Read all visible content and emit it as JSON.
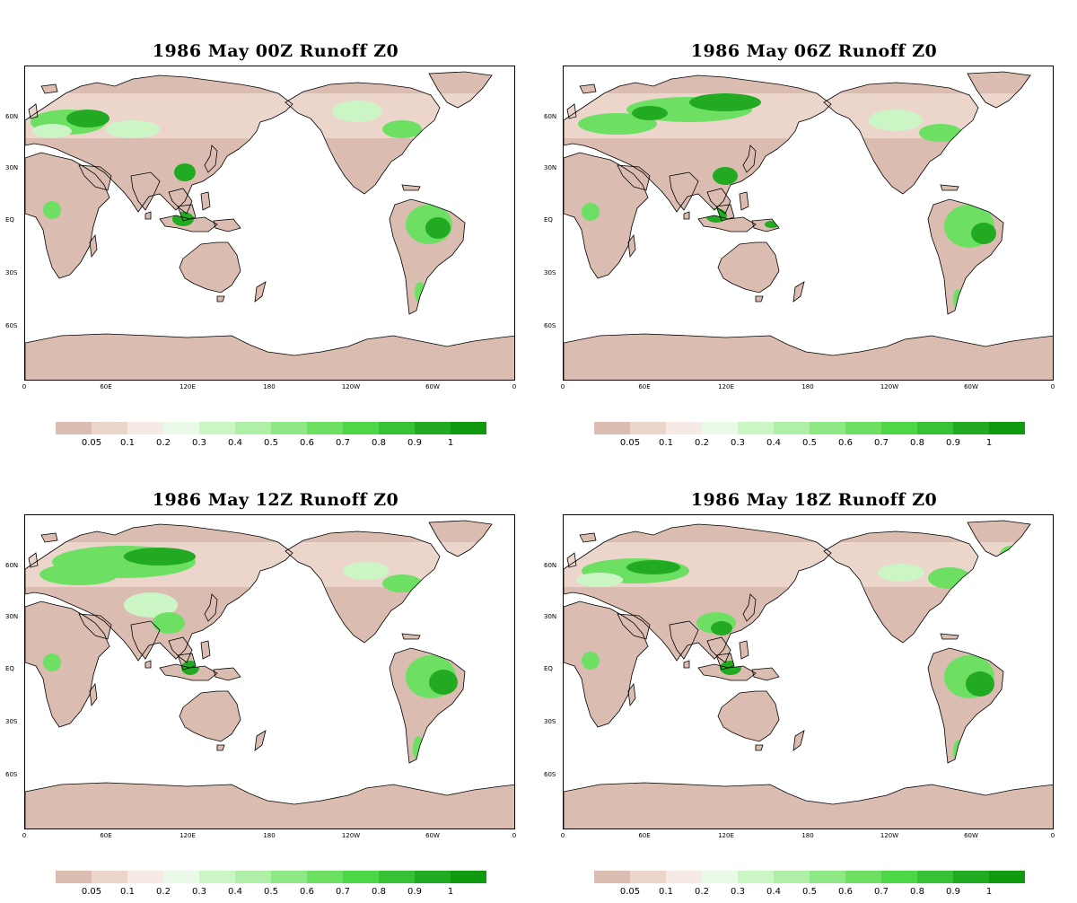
{
  "panels": [
    {
      "title": "1986 May 00Z Runoff Z0",
      "variant": 0
    },
    {
      "title": "1986  May 06Z Runoff Z0",
      "variant": 1
    },
    {
      "title": "1986  May 12Z Runoff Z0",
      "variant": 2
    },
    {
      "title": "1986  May 18Z Runoff Z0",
      "variant": 3
    }
  ],
  "lat_labels": [
    "60N",
    "30N",
    "EQ",
    "30S",
    "60S"
  ],
  "lon_labels": [
    "0",
    "60E",
    "120E",
    "180",
    "120W",
    "60W",
    "0"
  ],
  "colorbar": {
    "labels": [
      "0.05",
      "0.1",
      "0.2",
      "0.3",
      "0.4",
      "0.5",
      "0.6",
      "0.7",
      "0.8",
      "0.9",
      "1"
    ],
    "colors": [
      "#dbbcb0",
      "#ecd6cc",
      "#f6ebe4",
      "#eaf9e8",
      "#ccf5c6",
      "#afefa8",
      "#8ee886",
      "#6de064",
      "#4dd646",
      "#35c235",
      "#22ab22",
      "#109a10"
    ]
  },
  "colors": {
    "land_dry": "#dbbcb0",
    "land_low": "#ecd6cc",
    "green_light": "#ccf5c6",
    "green_mid": "#6de064",
    "green_dark": "#22ab22",
    "ocean": "#ffffff"
  }
}
